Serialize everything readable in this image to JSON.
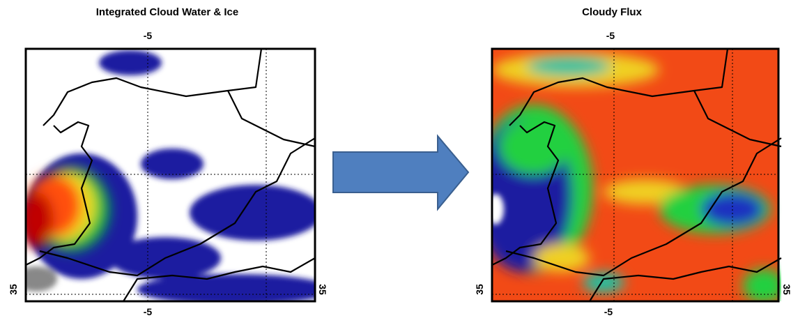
{
  "panels": [
    {
      "title": "Integrated Cloud Water & Ice",
      "top_label": "-5",
      "bottom_label": "-5",
      "left_label": "35",
      "right_label": "35"
    },
    {
      "title": "Cloudy Flux",
      "top_label": "-5",
      "bottom_label": "-5",
      "left_label": "35",
      "right_label": "35"
    }
  ]
}
